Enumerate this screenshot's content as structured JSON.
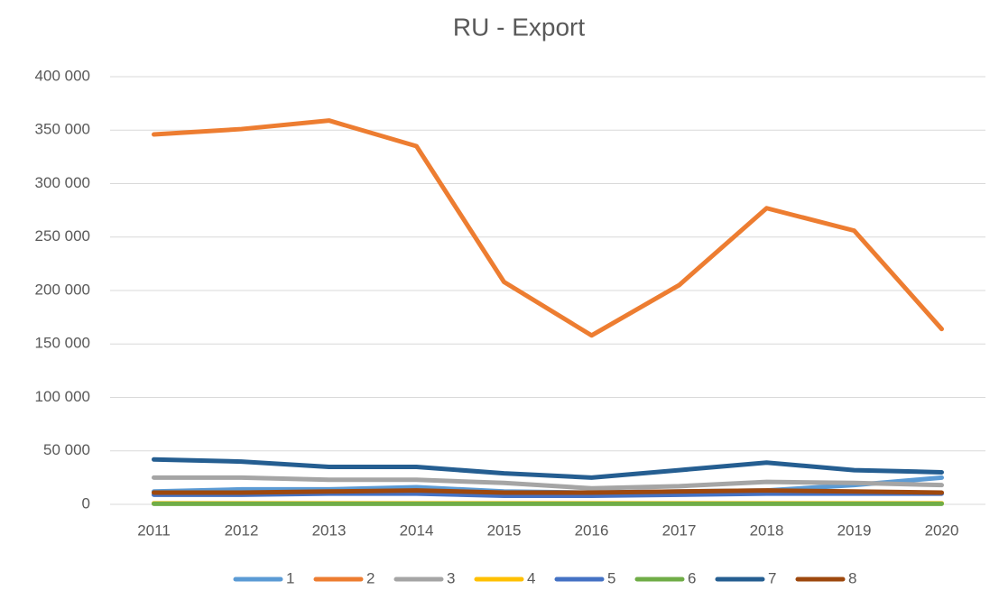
{
  "chart_data": {
    "type": "line",
    "title": "RU - Export",
    "categories": [
      "2011",
      "2012",
      "2013",
      "2014",
      "2015",
      "2016",
      "2017",
      "2018",
      "2019",
      "2020"
    ],
    "series": [
      {
        "name": "1",
        "color": "#5b9bd5",
        "values": [
          12000,
          14000,
          14000,
          16000,
          12000,
          11000,
          12000,
          13000,
          18000,
          25000
        ]
      },
      {
        "name": "2",
        "color": "#ed7d31",
        "values": [
          346000,
          351000,
          359000,
          335000,
          208000,
          158000,
          205000,
          277000,
          256000,
          164000
        ]
      },
      {
        "name": "3",
        "color": "#a5a5a5",
        "values": [
          25000,
          25000,
          23000,
          23000,
          20000,
          15000,
          17000,
          21000,
          20000,
          18000
        ]
      },
      {
        "name": "4",
        "color": "#ffc000",
        "values": [
          1000,
          1000,
          1000,
          1000,
          1000,
          1000,
          1000,
          1000,
          1000,
          1000
        ]
      },
      {
        "name": "5",
        "color": "#4472c4",
        "values": [
          9000,
          9000,
          10000,
          10000,
          8000,
          8000,
          9000,
          10000,
          10000,
          10000
        ]
      },
      {
        "name": "6",
        "color": "#70ad47",
        "values": [
          500,
          500,
          500,
          500,
          500,
          500,
          500,
          500,
          500,
          500
        ]
      },
      {
        "name": "7",
        "color": "#255e91",
        "values": [
          42000,
          40000,
          35000,
          35000,
          29000,
          25000,
          32000,
          39000,
          32000,
          30000
        ]
      },
      {
        "name": "8",
        "color": "#9e480e",
        "values": [
          11000,
          11000,
          12000,
          13000,
          11000,
          11000,
          12000,
          13000,
          12000,
          11000
        ]
      }
    ],
    "ylim": [
      0,
      400000
    ],
    "yticks": [
      0,
      {
        "value": 50000,
        "label": "50 000"
      },
      {
        "value": 100000,
        "label": "100 000"
      },
      {
        "value": 150000,
        "label": "150 000"
      },
      {
        "value": 200000,
        "label": "200 000"
      },
      {
        "value": 250000,
        "label": "250 000"
      },
      {
        "value": 300000,
        "label": "300 000"
      },
      {
        "value": 350000,
        "label": "350 000"
      },
      {
        "value": 400000,
        "label": "400 000"
      }
    ],
    "grid": true,
    "legend": "bottom"
  }
}
